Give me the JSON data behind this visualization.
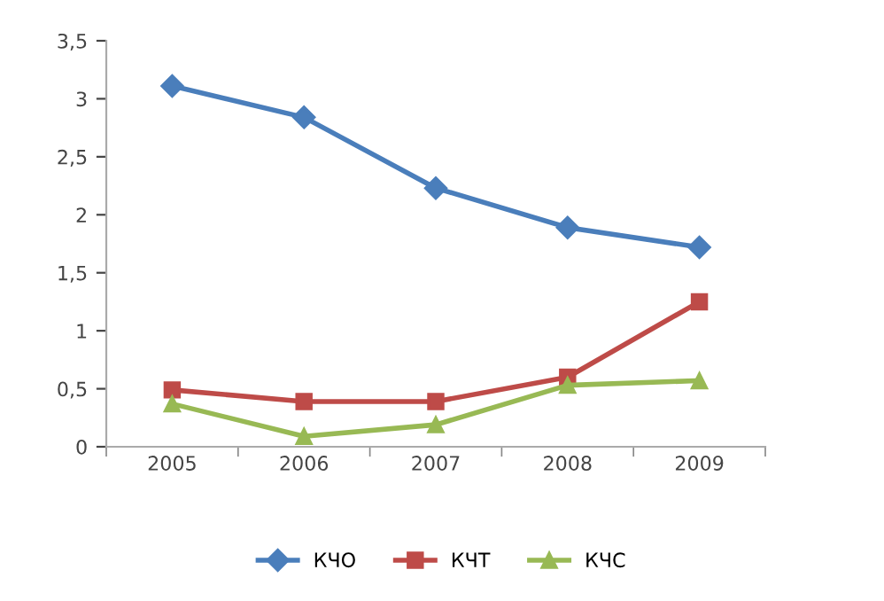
{
  "chart_data": {
    "type": "line",
    "categories": [
      "2005",
      "2006",
      "2007",
      "2008",
      "2009"
    ],
    "series": [
      {
        "name": "КЧО",
        "color": "#4a7ebb",
        "marker": "diamond",
        "values": [
          3.11,
          2.84,
          2.23,
          1.89,
          1.72
        ]
      },
      {
        "name": "КЧТ",
        "color": "#be4b48",
        "marker": "square",
        "values": [
          0.49,
          0.39,
          0.39,
          0.6,
          1.25
        ]
      },
      {
        "name": "КЧС",
        "color": "#98b954",
        "marker": "triangle",
        "values": [
          0.37,
          0.09,
          0.19,
          0.53,
          0.57
        ]
      }
    ],
    "ylim": [
      0,
      3.5
    ],
    "yticks": [
      0,
      {
        "value": 0.5,
        "label": "0,5"
      },
      1,
      {
        "value": 1.5,
        "label": "1,5"
      },
      2,
      {
        "value": 2.5,
        "label": "2,5"
      },
      3,
      {
        "value": 3.5,
        "label": "3,5"
      }
    ],
    "grid": false,
    "legend": "bottom",
    "line_style": "solid"
  }
}
